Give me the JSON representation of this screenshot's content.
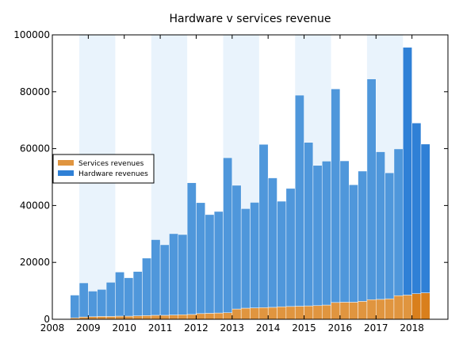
{
  "chart_data": {
    "type": "bar",
    "stacked": true,
    "title": "Hardware v services revenue",
    "xlabel": "",
    "ylabel": "",
    "xlim": [
      2008,
      2019
    ],
    "ylim": [
      0,
      100000
    ],
    "x_ticks": [
      "2008",
      "2009",
      "2010",
      "2011",
      "2012",
      "2013",
      "2014",
      "2015",
      "2016",
      "2017",
      "2018"
    ],
    "y_ticks": [
      "0",
      "20000",
      "40000",
      "60000",
      "80000",
      "100000"
    ],
    "legend_position": "center-left",
    "grid": false,
    "colors": {
      "services": "#e0953f",
      "services_last": "#d97f1c",
      "hardware": "#4f97db",
      "hardware_last": "#2f80d6",
      "band": "#e9f3fc",
      "band_border": "#c9def2"
    },
    "quarters": [
      2008.5,
      2008.75,
      2009.0,
      2009.25,
      2009.5,
      2009.75,
      2010.0,
      2010.25,
      2010.5,
      2010.75,
      2011.0,
      2011.25,
      2011.5,
      2011.75,
      2012.0,
      2012.25,
      2012.5,
      2012.75,
      2013.0,
      2013.25,
      2013.5,
      2013.75,
      2014.0,
      2014.25,
      2014.5,
      2014.75,
      2015.0,
      2015.25,
      2015.5,
      2015.75,
      2016.0,
      2016.25,
      2016.5,
      2016.75,
      2017.0,
      2017.25,
      2017.5,
      2017.75,
      2018.0,
      2018.25
    ],
    "highlight_bands": [
      [
        2008.75,
        2009.75
      ],
      [
        2010.75,
        2011.75
      ],
      [
        2012.75,
        2013.75
      ],
      [
        2014.75,
        2015.75
      ],
      [
        2016.75,
        2017.75
      ]
    ],
    "series": [
      {
        "name": "Services revenues",
        "values": [
          500,
          800,
          900,
          1000,
          1000,
          1100,
          1100,
          1200,
          1300,
          1400,
          1400,
          1500,
          1600,
          1700,
          2000,
          2100,
          2200,
          2300,
          3600,
          3900,
          4000,
          4100,
          4200,
          4400,
          4500,
          4600,
          4700,
          4800,
          5000,
          5900,
          6000,
          6000,
          6300,
          6900,
          7000,
          7200,
          8300,
          8500,
          9000,
          9300
        ]
      },
      {
        "name": "Hardware revenues",
        "values": [
          8000,
          12000,
          9000,
          9500,
          12000,
          15500,
          13500,
          15600,
          20200,
          26600,
          24800,
          28600,
          28200,
          46300,
          39000,
          34700,
          35700,
          54500,
          43500,
          35000,
          37100,
          57400,
          45500,
          37100,
          41500,
          74200,
          57500,
          49300,
          50600,
          75100,
          49700,
          41300,
          45800,
          77600,
          51900,
          44300,
          51600,
          87100,
          60000,
          52300
        ]
      }
    ],
    "legend": [
      "Services revenues",
      "Hardware revenues"
    ]
  }
}
